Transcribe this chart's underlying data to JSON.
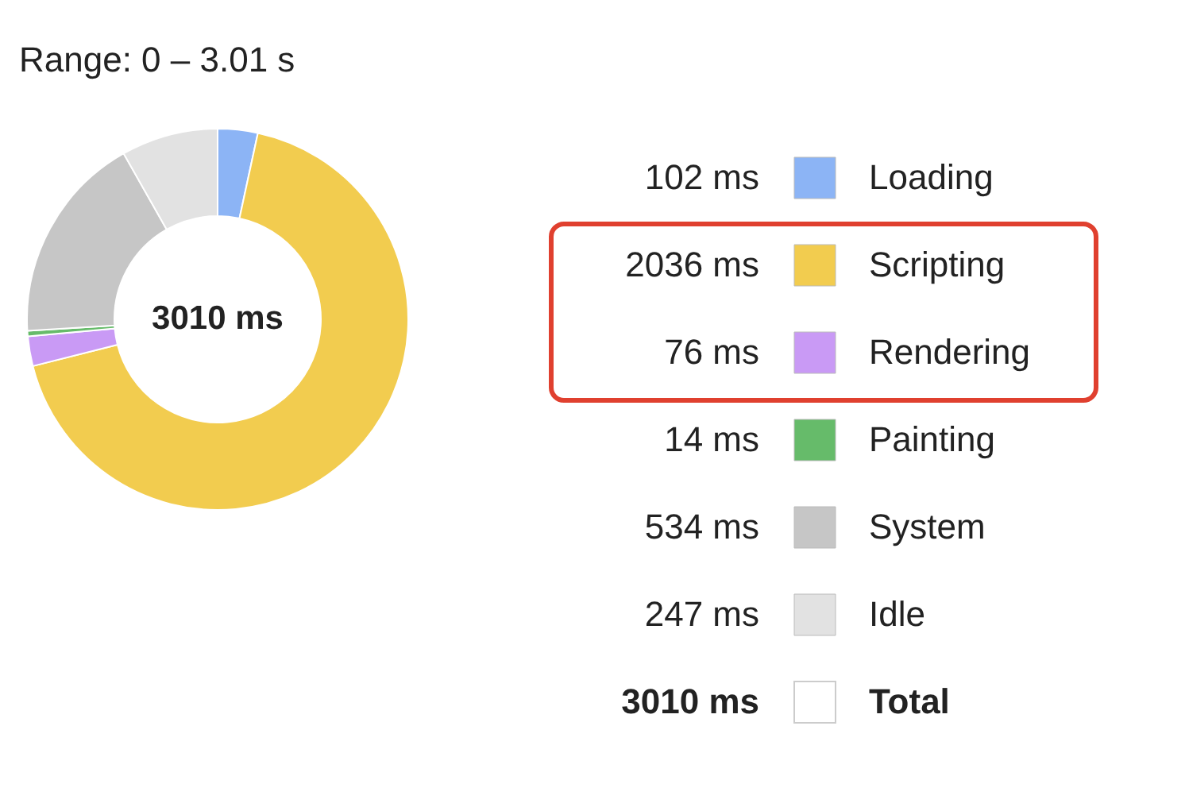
{
  "chart_data": {
    "type": "donut",
    "title": "Range: 0 – 3.01 s",
    "categories": [
      "Loading",
      "Scripting",
      "Rendering",
      "Painting",
      "System",
      "Idle"
    ],
    "values": [
      102,
      2036,
      76,
      14,
      534,
      247
    ],
    "value_labels": [
      "102 ms",
      "2036 ms",
      "76 ms",
      "14 ms",
      "534 ms",
      "247 ms"
    ],
    "colors": [
      "#8cb4f5",
      "#f2cc4f",
      "#c99af5",
      "#66bb6a",
      "#c6c6c6",
      "#e2e2e2"
    ],
    "totals": [
      "3010 ms"
    ],
    "annotations": [
      "Total"
    ],
    "legend": "right"
  }
}
